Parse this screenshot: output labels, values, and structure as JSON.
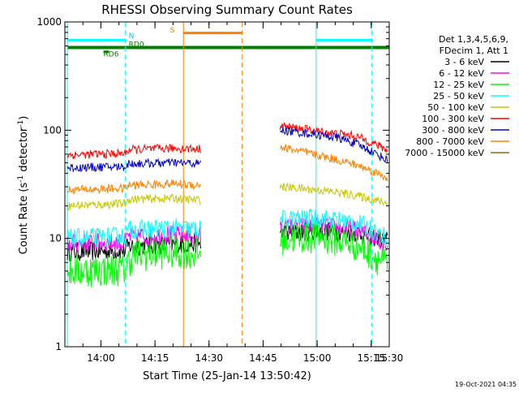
{
  "chart_data": {
    "type": "line",
    "title": "RHESSI Observing Summary Count Rates",
    "xlabel": "Start Time (25-Jan-14 13:50:42)",
    "ylabel_parts": [
      "Count Rate (s",
      "-1",
      " detector",
      "-1",
      ")"
    ],
    "y_scale": "log",
    "ylim": [
      1,
      1000
    ],
    "y_ticks": [
      {
        "value": 1,
        "label": "1"
      },
      {
        "value": 10,
        "label": "10"
      },
      {
        "value": 100,
        "label": "100"
      },
      {
        "value": 1000,
        "label": "1000"
      }
    ],
    "xlim_minutes": [
      -0.7,
      89.3
    ],
    "x_ticks": [
      {
        "minute": 9.3,
        "label": "14:00"
      },
      {
        "minute": 24.3,
        "label": "14:15"
      },
      {
        "minute": 39.3,
        "label": "14:30"
      },
      {
        "minute": 54.3,
        "label": "14:45"
      },
      {
        "minute": 69.3,
        "label": "15:00"
      },
      {
        "minute": 84.3,
        "label": "15:15"
      },
      {
        "minute": 99.3,
        "label": "15:30"
      }
    ],
    "legend_header": [
      "Det 1,3,4,5,6,9,",
      "FDecim 1, Att 1"
    ],
    "legend_position": "right, outside plot",
    "series": [
      {
        "name": "3 - 6 keV",
        "color": "#000000",
        "segments": [
          [
            [
              0,
              7.5
            ],
            [
              16,
              7.7
            ],
            [
              17,
              8.5
            ],
            [
              30,
              8.8
            ],
            [
              37,
              9.0
            ]
          ],
          [
            [
              59,
              11.0
            ],
            [
              70,
              11.8
            ],
            [
              80,
              11.3
            ],
            [
              89,
              9.5
            ]
          ]
        ]
      },
      {
        "name": "6 - 12 keV",
        "color": "#ff00ff",
        "segments": [
          [
            [
              0,
              9.0
            ],
            [
              16,
              9.2
            ],
            [
              17,
              10.5
            ],
            [
              30,
              10.8
            ],
            [
              37,
              10.5
            ]
          ],
          [
            [
              59,
              12.5
            ],
            [
              70,
              13.0
            ],
            [
              80,
              12.0
            ],
            [
              89,
              9.0
            ]
          ]
        ]
      },
      {
        "name": "12 - 25 keV",
        "color": "#00ff00",
        "segments": [
          [
            [
              0,
              5.0
            ],
            [
              16,
              5.2
            ],
            [
              18,
              7.0
            ],
            [
              30,
              7.5
            ],
            [
              37,
              7.2
            ]
          ],
          [
            [
              59,
              10.0
            ],
            [
              70,
              10.5
            ],
            [
              80,
              8.8
            ],
            [
              89,
              5.5
            ]
          ]
        ]
      },
      {
        "name": "25 - 50 keV",
        "color": "#00ffff",
        "segments": [
          [
            [
              0,
              10.0
            ],
            [
              16,
              10.5
            ],
            [
              17,
              12.0
            ],
            [
              30,
              12.5
            ],
            [
              37,
              12.0
            ]
          ],
          [
            [
              59,
              15.0
            ],
            [
              70,
              15.5
            ],
            [
              80,
              14.0
            ],
            [
              89,
              10.0
            ]
          ]
        ]
      },
      {
        "name": "50 - 100 keV",
        "color": "#c8c800",
        "segments": [
          [
            [
              0,
              20.0
            ],
            [
              16,
              21.0
            ],
            [
              17,
              23.0
            ],
            [
              30,
              23.5
            ],
            [
              37,
              22.5
            ]
          ],
          [
            [
              59,
              30.0
            ],
            [
              70,
              28.0
            ],
            [
              80,
              25.0
            ],
            [
              89,
              21.0
            ]
          ]
        ]
      },
      {
        "name": "100 - 300 keV",
        "color": "#ff0000",
        "segments": [
          [
            [
              0,
              59.0
            ],
            [
              16,
              61.0
            ],
            [
              17,
              66.0
            ],
            [
              30,
              68.0
            ],
            [
              37,
              67.0
            ]
          ],
          [
            [
              59,
              110.0
            ],
            [
              70,
              97.0
            ],
            [
              75,
              93.0
            ],
            [
              80,
              88.0
            ],
            [
              89,
              65.0
            ]
          ]
        ]
      },
      {
        "name": "300 - 800 keV",
        "color": "#0000cc",
        "segments": [
          [
            [
              0,
              45.0
            ],
            [
              16,
              46.0
            ],
            [
              17,
              49.0
            ],
            [
              30,
              50.0
            ],
            [
              37,
              49.0
            ]
          ],
          [
            [
              59,
              100.0
            ],
            [
              70,
              90.0
            ],
            [
              75,
              85.0
            ],
            [
              80,
              75.0
            ],
            [
              89,
              52.0
            ]
          ]
        ]
      },
      {
        "name": "800 - 7000 keV",
        "color": "#ff8000",
        "segments": [
          [
            [
              0,
              28.0
            ],
            [
              16,
              29.0
            ],
            [
              17,
              31.0
            ],
            [
              30,
              32.0
            ],
            [
              37,
              31.0
            ]
          ],
          [
            [
              59,
              70.0
            ],
            [
              70,
              58.0
            ],
            [
              80,
              48.0
            ],
            [
              89,
              36.0
            ]
          ]
        ]
      },
      {
        "name": "7000 - 15000 keV",
        "color": "#996600",
        "segments": []
      }
    ],
    "annotations": {
      "cyan_bars": [
        {
          "x0": 0.0,
          "x1": 16.1,
          "value": 680
        },
        {
          "x0": 69.0,
          "x1": 84.5,
          "value": 680
        }
      ],
      "green_bar": {
        "x0": 0.0,
        "x1": 89.3,
        "value": 580
      },
      "orange_bar": {
        "x0": 32.2,
        "x1": 48.5,
        "value": 790
      },
      "short_green_bar": {
        "x0": 10.0,
        "x1": 11.5,
        "value": 530
      },
      "labels": [
        {
          "text": "N",
          "minute": 17.0,
          "value": 710,
          "color": "#00cccc"
        },
        {
          "text": "RD0",
          "minute": 17.0,
          "value": 590,
          "color": "#008000"
        },
        {
          "text": "RD6",
          "minute": 10.0,
          "value": 480,
          "color": "#008000"
        },
        {
          "text": "S",
          "minute": 28.5,
          "value": 800,
          "color": "#ff8000"
        }
      ],
      "vlines": [
        {
          "minute": 16.1,
          "color": "#00ffff",
          "dash": true
        },
        {
          "minute": 32.2,
          "color": "#ff8000",
          "dash": false
        },
        {
          "minute": 48.5,
          "color": "#ff8000",
          "dash": true
        },
        {
          "minute": 69.0,
          "color": "#00ffff",
          "dash": false
        },
        {
          "minute": 84.5,
          "color": "#00ffff",
          "dash": true
        },
        {
          "minute": 0.0,
          "color": "#00ffff",
          "dash": false
        }
      ]
    },
    "timestamp": "19-Oct-2021 04:35"
  }
}
